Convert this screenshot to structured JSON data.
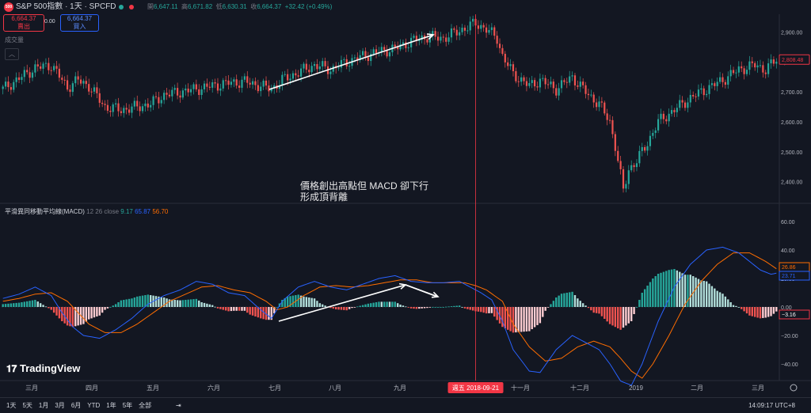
{
  "header": {
    "logo_text": "500",
    "symbol": "S&P 500指數 · 1天 · SPCFD",
    "ohlc": [
      {
        "label": "開",
        "value": "6,647.11"
      },
      {
        "label": "高",
        "value": "6,671.82"
      },
      {
        "label": "低",
        "value": "6,630.31"
      },
      {
        "label": "收",
        "value": "6,664.37"
      }
    ],
    "change": "+32.42 (+0.49%)",
    "sell_price": "6,664.37",
    "sell_label": "賣出",
    "spread": "0.00",
    "buy_price": "6,664.37",
    "buy_label": "買入",
    "volume_label": "成交量",
    "collapse_icon": "chevron-up-icon",
    "colors": {
      "up": "#26a69a",
      "down": "#ef5350",
      "accent": "#f23645"
    }
  },
  "annotation": {
    "line1": "價格創出高點但 MACD 卻下行",
    "line2": "形成頂背離"
  },
  "macd_legend": {
    "name": "平滑異同移動平均線(MACD)",
    "params": "12 26 close",
    "v1": "9.17",
    "v2": "65.87",
    "v3": "56.70"
  },
  "branding": {
    "name": "TradingView"
  },
  "bottom": {
    "timeframes": [
      "1天",
      "5天",
      "1月",
      "3月",
      "6月",
      "YTD",
      "1年",
      "5年",
      "全部"
    ],
    "clock": "14:09:17 UTC+8"
  },
  "chart_data": [
    {
      "type": "candlestick",
      "title": "S&P 500指數 · 1天 · SPCFD",
      "y_ticks": [
        2400,
        2500,
        2600,
        2700,
        2800,
        2900
      ],
      "y_tick_labels": [
        "2,400.00",
        "2,500.00",
        "2,600.00",
        "2,700.00",
        "2,800.00",
        "2,900.00"
      ],
      "ylim": [
        2330,
        2960
      ],
      "last_price_label": "2,808.48",
      "x_ticks": [
        "三月",
        "四月",
        "五月",
        "六月",
        "七月",
        "八月",
        "九月",
        "十一月",
        "十二月",
        "2019",
        "二月",
        "三月"
      ],
      "crosshair_label": "週五 2018-09-21",
      "close_path": [
        [
          0,
          2710
        ],
        [
          6,
          2745
        ],
        [
          12,
          2780
        ],
        [
          18,
          2790
        ],
        [
          24,
          2715
        ],
        [
          28,
          2740
        ],
        [
          32,
          2720
        ],
        [
          38,
          2650
        ],
        [
          44,
          2640
        ],
        [
          50,
          2650
        ],
        [
          55,
          2660
        ],
        [
          60,
          2690
        ],
        [
          66,
          2700
        ],
        [
          72,
          2710
        ],
        [
          78,
          2720
        ],
        [
          84,
          2730
        ],
        [
          90,
          2735
        ],
        [
          96,
          2720
        ],
        [
          100,
          2710
        ],
        [
          104,
          2740
        ],
        [
          110,
          2765
        ],
        [
          116,
          2790
        ],
        [
          122,
          2775
        ],
        [
          128,
          2800
        ],
        [
          134,
          2820
        ],
        [
          140,
          2835
        ],
        [
          146,
          2845
        ],
        [
          152,
          2870
        ],
        [
          158,
          2885
        ],
        [
          164,
          2880
        ],
        [
          170,
          2905
        ],
        [
          176,
          2930
        ],
        [
          180,
          2910
        ],
        [
          184,
          2880
        ],
        [
          186,
          2820
        ],
        [
          190,
          2760
        ],
        [
          196,
          2720
        ],
        [
          200,
          2740
        ],
        [
          206,
          2710
        ],
        [
          212,
          2750
        ],
        [
          218,
          2690
        ],
        [
          222,
          2660
        ],
        [
          226,
          2600
        ],
        [
          228,
          2520
        ],
        [
          230,
          2420
        ],
        [
          231,
          2370
        ],
        [
          233,
          2440
        ],
        [
          236,
          2470
        ],
        [
          240,
          2530
        ],
        [
          244,
          2600
        ],
        [
          250,
          2640
        ],
        [
          256,
          2680
        ],
        [
          262,
          2710
        ],
        [
          268,
          2740
        ],
        [
          274,
          2775
        ],
        [
          280,
          2790
        ],
        [
          284,
          2775
        ],
        [
          288,
          2808
        ]
      ],
      "n_bars": 289
    },
    {
      "type": "macd",
      "title": "平滑異同移動平均線(MACD)",
      "y_ticks": [
        60,
        40,
        20,
        0,
        -20,
        -40
      ],
      "y_tick_labels": [
        "60.00",
        "40.00",
        "20.00",
        "0.00",
        "−20.00",
        "−40.00"
      ],
      "ylim": [
        -50,
        70
      ],
      "labels_right": {
        "signal": "26.86",
        "macd": "23.71",
        "hist": "−3.16"
      },
      "macd_line": [
        [
          0,
          6
        ],
        [
          6,
          9
        ],
        [
          12,
          14
        ],
        [
          18,
          8
        ],
        [
          22,
          -4
        ],
        [
          26,
          -14
        ],
        [
          30,
          -20
        ],
        [
          36,
          -22
        ],
        [
          42,
          -16
        ],
        [
          48,
          -8
        ],
        [
          54,
          2
        ],
        [
          60,
          8
        ],
        [
          66,
          12
        ],
        [
          72,
          18
        ],
        [
          78,
          16
        ],
        [
          84,
          10
        ],
        [
          90,
          8
        ],
        [
          96,
          -2
        ],
        [
          100,
          -8
        ],
        [
          104,
          4
        ],
        [
          110,
          14
        ],
        [
          116,
          18
        ],
        [
          122,
          14
        ],
        [
          128,
          12
        ],
        [
          134,
          16
        ],
        [
          140,
          20
        ],
        [
          146,
          22
        ],
        [
          152,
          18
        ],
        [
          158,
          17
        ],
        [
          164,
          17
        ],
        [
          170,
          18
        ],
        [
          174,
          14
        ],
        [
          178,
          10
        ],
        [
          182,
          5
        ],
        [
          186,
          -10
        ],
        [
          190,
          -30
        ],
        [
          196,
          -45
        ],
        [
          200,
          -46
        ],
        [
          206,
          -30
        ],
        [
          212,
          -20
        ],
        [
          218,
          -26
        ],
        [
          222,
          -30
        ],
        [
          226,
          -40
        ],
        [
          230,
          -52
        ],
        [
          234,
          -55
        ],
        [
          238,
          -40
        ],
        [
          244,
          -10
        ],
        [
          250,
          14
        ],
        [
          256,
          30
        ],
        [
          262,
          40
        ],
        [
          268,
          42
        ],
        [
          274,
          38
        ],
        [
          278,
          32
        ],
        [
          282,
          26
        ],
        [
          286,
          23
        ],
        [
          288,
          23.71
        ]
      ],
      "signal_line": [
        [
          0,
          4
        ],
        [
          6,
          6
        ],
        [
          12,
          9
        ],
        [
          18,
          10
        ],
        [
          24,
          4
        ],
        [
          28,
          -4
        ],
        [
          32,
          -12
        ],
        [
          38,
          -18
        ],
        [
          44,
          -18
        ],
        [
          50,
          -12
        ],
        [
          56,
          -4
        ],
        [
          62,
          4
        ],
        [
          68,
          9
        ],
        [
          74,
          14
        ],
        [
          80,
          15
        ],
        [
          86,
          12
        ],
        [
          92,
          10
        ],
        [
          98,
          4
        ],
        [
          102,
          -2
        ],
        [
          106,
          0
        ],
        [
          112,
          8
        ],
        [
          118,
          14
        ],
        [
          124,
          15
        ],
        [
          130,
          14
        ],
        [
          136,
          15
        ],
        [
          142,
          17
        ],
        [
          148,
          19
        ],
        [
          154,
          19
        ],
        [
          160,
          17
        ],
        [
          166,
          17
        ],
        [
          172,
          17
        ],
        [
          176,
          15
        ],
        [
          180,
          12
        ],
        [
          186,
          4
        ],
        [
          190,
          -12
        ],
        [
          196,
          -28
        ],
        [
          202,
          -38
        ],
        [
          208,
          -36
        ],
        [
          214,
          -28
        ],
        [
          220,
          -24
        ],
        [
          226,
          -28
        ],
        [
          230,
          -36
        ],
        [
          234,
          -45
        ],
        [
          238,
          -50
        ],
        [
          242,
          -40
        ],
        [
          248,
          -20
        ],
        [
          254,
          2
        ],
        [
          260,
          18
        ],
        [
          266,
          30
        ],
        [
          272,
          38
        ],
        [
          278,
          38
        ],
        [
          284,
          32
        ],
        [
          288,
          26.86
        ]
      ],
      "n_bars": 289
    }
  ]
}
